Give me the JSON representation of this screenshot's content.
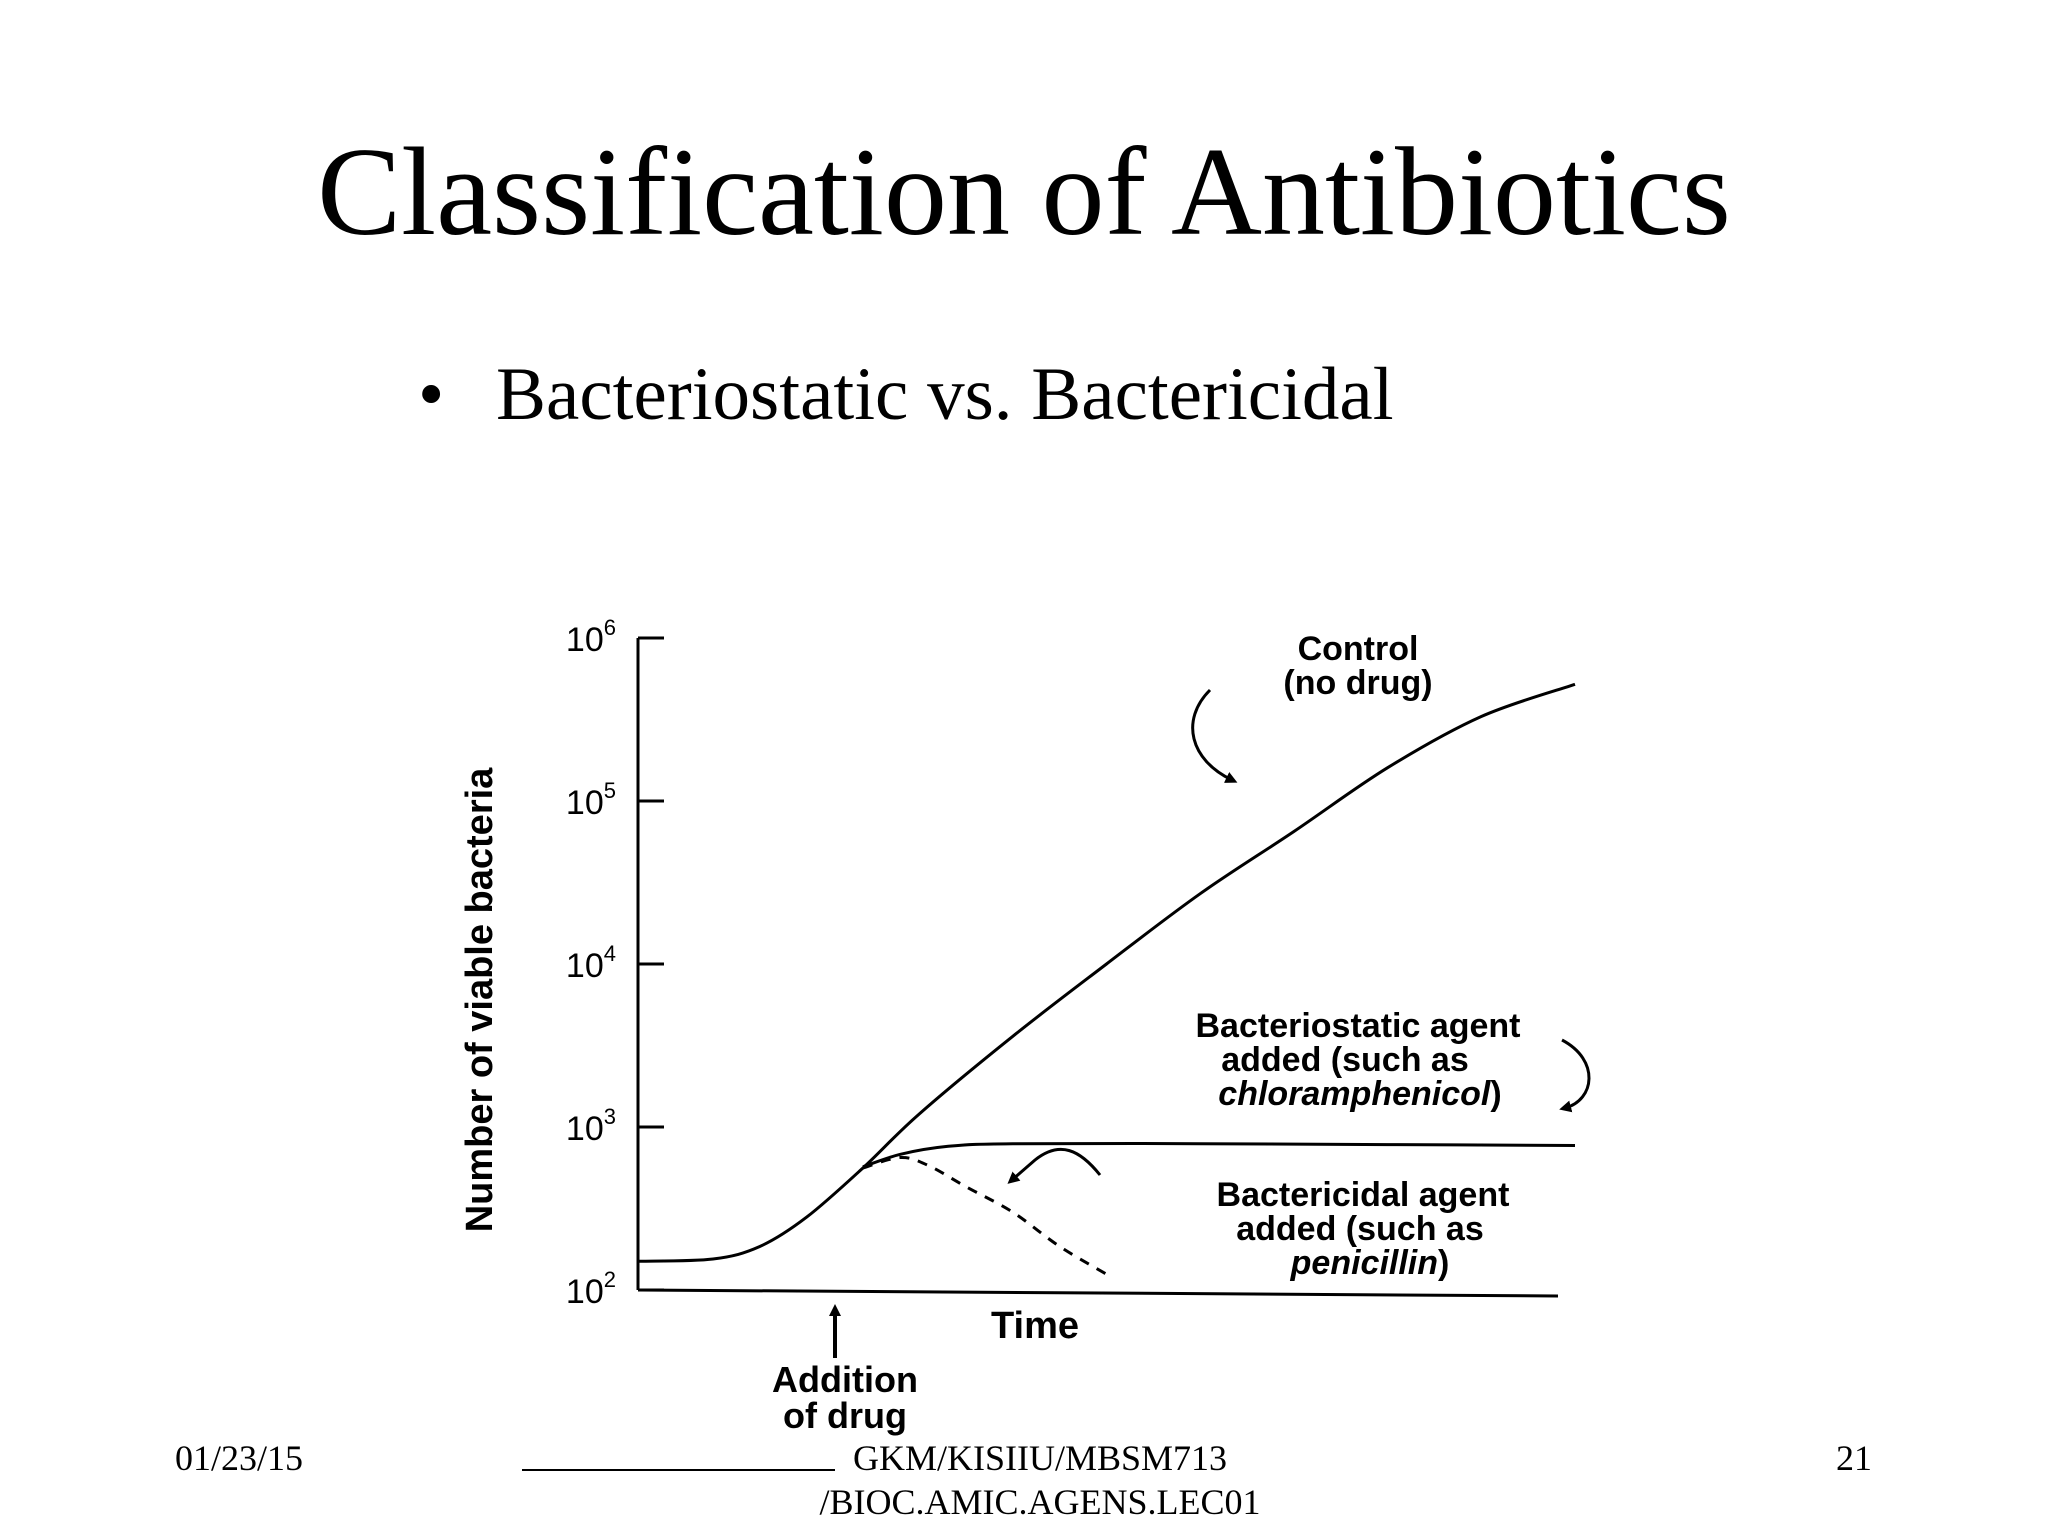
{
  "slide": {
    "title": "Classification of Antibiotics",
    "bullet_symbol": "•",
    "bullet_text": "Bacteriostatic vs. Bactericidal"
  },
  "footer": {
    "date": "01/23/15",
    "source_line1": "GKM/KISIIU/MBSM713",
    "source_line2": "/BIOC.AMIC.AGENS.LEC01",
    "page": "21"
  },
  "chart_data": {
    "type": "line",
    "xlabel": "Time",
    "ylabel": "Number of viable bacteria",
    "y_scale": "log",
    "y_ticks": [
      {
        "base": "10",
        "exp": "2",
        "value": 100
      },
      {
        "base": "10",
        "exp": "3",
        "value": 1000
      },
      {
        "base": "10",
        "exp": "4",
        "value": 10000
      },
      {
        "base": "10",
        "exp": "5",
        "value": 100000
      },
      {
        "base": "10",
        "exp": "6",
        "value": 1000000
      }
    ],
    "ylim": [
      100,
      1000000
    ],
    "xlim": [
      0,
      10
    ],
    "grid": false,
    "series": [
      {
        "key": "control",
        "label_lines": [
          "Control",
          "(no drug)"
        ],
        "italic_line": null,
        "line_style": "solid",
        "points": [
          [
            0,
            150
          ],
          [
            0.8,
            155
          ],
          [
            1.3,
            185
          ],
          [
            1.8,
            280
          ],
          [
            2.4,
            560
          ],
          [
            3,
            1200
          ],
          [
            4,
            3600
          ],
          [
            5,
            10000
          ],
          [
            6,
            27000
          ],
          [
            7,
            65000
          ],
          [
            8,
            160000
          ],
          [
            9,
            330000
          ],
          [
            10,
            520000
          ]
        ]
      },
      {
        "key": "bacteriostatic",
        "label_lines": [
          "Bacteriostatic agent",
          "added (such as"
        ],
        "italic_line": "chloramphenicol",
        "closing": ")",
        "line_style": "solid",
        "points": [
          [
            2.4,
            570
          ],
          [
            2.8,
            680
          ],
          [
            3.3,
            760
          ],
          [
            4,
            790
          ],
          [
            6,
            790
          ],
          [
            8,
            780
          ],
          [
            10,
            770
          ]
        ]
      },
      {
        "key": "bactericidal",
        "label_lines": [
          "Bactericidal agent",
          "added (such as"
        ],
        "italic_line": "penicillin",
        "closing": ")",
        "line_style": "dashed",
        "points": [
          [
            2.4,
            560
          ],
          [
            2.8,
            650
          ],
          [
            3.1,
            580
          ],
          [
            3.5,
            430
          ],
          [
            4,
            300
          ],
          [
            4.5,
            185
          ],
          [
            5,
            125
          ]
        ]
      }
    ],
    "annotation": {
      "lines": [
        "Addition",
        "of drug"
      ],
      "at_x": 2.4
    }
  }
}
